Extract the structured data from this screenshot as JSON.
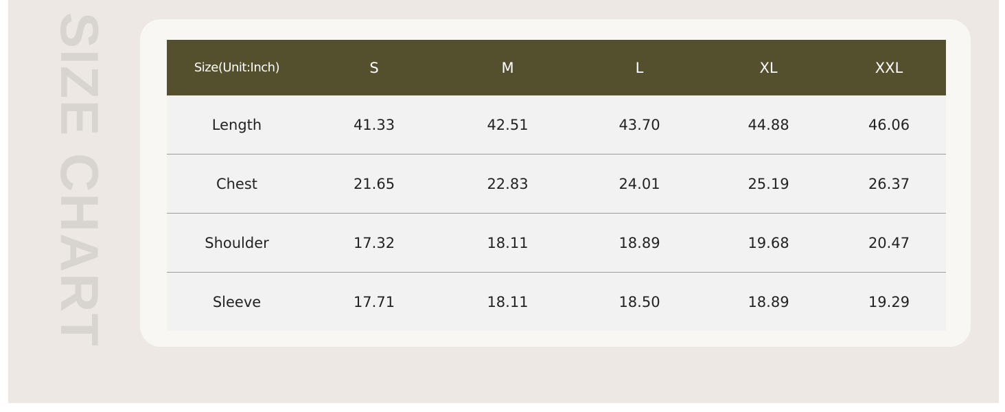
{
  "side_title": "SIZE CHART",
  "table": {
    "header": [
      "Size(Unit:Inch)",
      "S",
      "M",
      "L",
      "XL",
      "XXL"
    ],
    "rows": [
      [
        "Length",
        "41.33",
        "42.51",
        "43.70",
        "44.88",
        "46.06"
      ],
      [
        "Chest",
        "21.65",
        "22.83",
        "24.01",
        "25.19",
        "26.37"
      ],
      [
        "Shoulder",
        "17.32",
        "18.11",
        "18.89",
        "19.68",
        "20.47"
      ],
      [
        "Sleeve",
        "17.71",
        "18.11",
        "18.50",
        "18.89",
        "19.29"
      ]
    ]
  }
}
